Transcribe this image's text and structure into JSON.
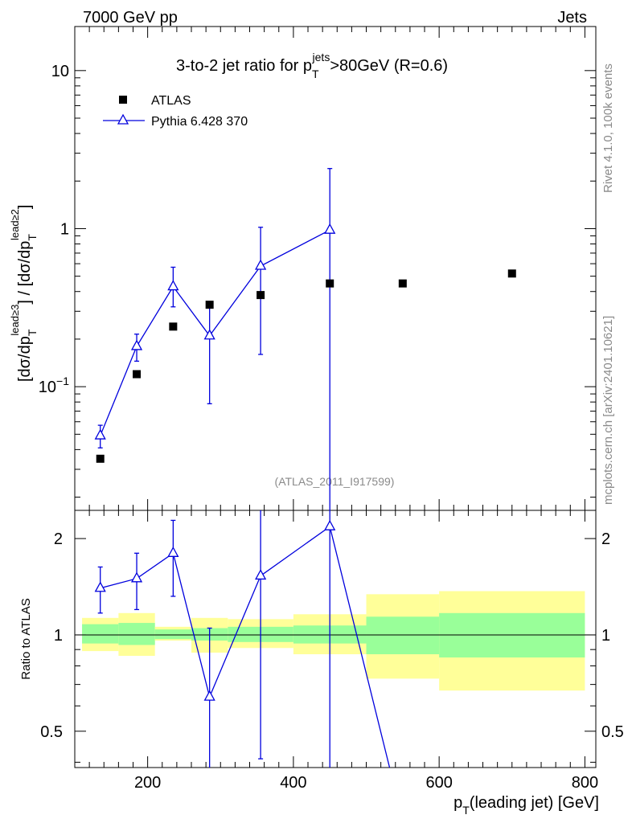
{
  "header": {
    "energy": "7000 GeV pp",
    "category": "Jets"
  },
  "side_labels": {
    "rivet": "Rivet 4.1.0,  100k events",
    "mcplots": "mcplots.cern.ch [arXiv:2401.10621]"
  },
  "analysis_id": "(ATLAS_2011_I917599)",
  "title_parts": {
    "pre": "3-to-2 jet ratio for p",
    "sup": "jets",
    "sub": "T",
    "post": ">80GeV (R=0.6)"
  },
  "axis_text": {
    "ylabel_main": "[dσ/dp_T^{lead≥3}] / [dσ/dp_T^{lead≥2}]",
    "ylabel_ratio": "Ratio to ATLAS",
    "xlabel": "p_T(leading jet) [GeV]",
    "x_ticks": [
      "200",
      "400",
      "600",
      "800"
    ],
    "main_ticks": [
      "10^{-1}",
      "1",
      "10"
    ],
    "ratio_ticks": [
      "0.5",
      "1",
      "2"
    ]
  },
  "legend": {
    "data": "ATLAS",
    "mc": "Pythia 6.428 370"
  },
  "colors": {
    "mc": "#0000dd",
    "band_inner": "#99ff99",
    "band_outer": "#ffff99",
    "data": "#000000"
  },
  "chart_data": {
    "type": "scatter",
    "title": "3-to-2 jet ratio for pT^jets>80GeV (R=0.6)",
    "xlabel": "pT(leading jet) [GeV]",
    "ylabel": "[dσ/dpT^lead≥3] / [dσ/dpT^lead≥2]",
    "xlim": [
      100,
      815
    ],
    "ylim_main": [
      0.0165,
      19
    ],
    "ylim_ratio": [
      0.385,
      2.45
    ],
    "yscale": "log",
    "series": [
      {
        "name": "ATLAS",
        "x": [
          135,
          185,
          235,
          285,
          355,
          450,
          550,
          700
        ],
        "y": [
          0.035,
          0.12,
          0.24,
          0.33,
          0.38,
          0.45,
          0.45,
          0.52
        ],
        "bin_edges": [
          110,
          160,
          210,
          260,
          310,
          400,
          500,
          600,
          800
        ],
        "ratio_band_inner": [
          [
            0.94,
            1.08
          ],
          [
            0.93,
            1.09
          ],
          [
            0.97,
            1.04
          ],
          [
            0.96,
            1.05
          ],
          [
            0.95,
            1.06
          ],
          [
            0.94,
            1.07
          ],
          [
            0.87,
            1.14
          ],
          [
            0.85,
            1.17
          ]
        ],
        "ratio_band_outer": [
          [
            0.89,
            1.13
          ],
          [
            0.86,
            1.17
          ],
          [
            0.96,
            1.06
          ],
          [
            0.88,
            1.13
          ],
          [
            0.91,
            1.12
          ],
          [
            0.87,
            1.16
          ],
          [
            0.73,
            1.34
          ],
          [
            0.67,
            1.37
          ]
        ]
      },
      {
        "name": "Pythia 6.428 370",
        "x": [
          135,
          185,
          235,
          285,
          355,
          450
        ],
        "y": [
          0.049,
          0.18,
          0.43,
          0.21,
          0.58,
          0.98
        ],
        "yerr_low": [
          0.041,
          0.145,
          0.32,
          0.078,
          0.16,
          0.0001
        ],
        "yerr_high": [
          0.057,
          0.215,
          0.57,
          0.34,
          1.02,
          2.4
        ],
        "ratio": [
          1.4,
          1.5,
          1.8,
          0.64,
          1.53,
          2.18
        ],
        "ratio_low": [
          1.17,
          1.2,
          1.32,
          0.3,
          0.41,
          0.0001
        ],
        "ratio_high": [
          1.63,
          1.8,
          2.28,
          1.05,
          2.7,
          3.0
        ],
        "ratio_line_end": [
          532,
          0.38
        ]
      }
    ]
  }
}
